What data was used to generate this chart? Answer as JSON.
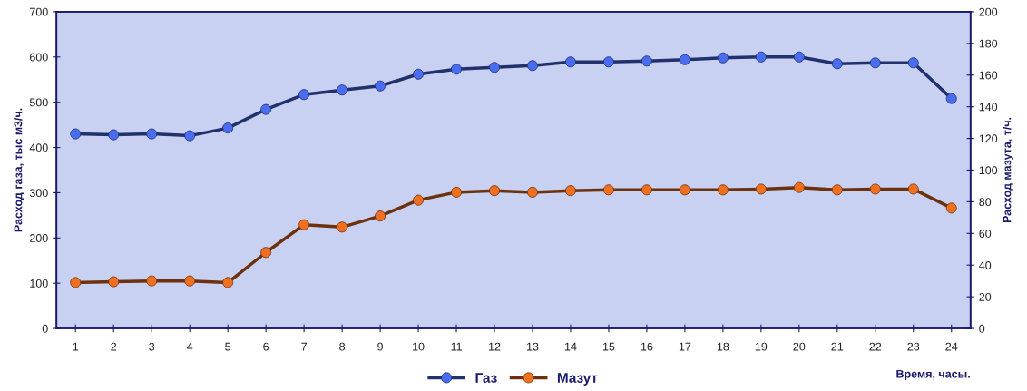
{
  "chart_data": {
    "type": "line",
    "xlabel": "Время, часы.",
    "ylabel": "Расход газа, тыс м3/ч.",
    "y2label": "Расход мазута, т/ч.",
    "categories": [
      "1",
      "2",
      "3",
      "4",
      "5",
      "6",
      "7",
      "8",
      "9",
      "10",
      "11",
      "12",
      "13",
      "14",
      "15",
      "16",
      "17",
      "18",
      "19",
      "20",
      "21",
      "22",
      "23",
      "24"
    ],
    "series": [
      {
        "name": "Газ",
        "color": "#4a6cf0",
        "values": [
          430,
          428,
          430,
          426,
          443,
          484,
          517,
          527,
          536,
          562,
          573,
          577,
          581,
          589,
          589,
          591,
          594,
          598,
          600,
          600,
          585,
          587,
          587,
          508
        ]
      },
      {
        "name": "Мазут",
        "color": "#f07020",
        "axis": "y2",
        "values": [
          29,
          29.5,
          30,
          30,
          29,
          48,
          65.5,
          64,
          71,
          81,
          86,
          87,
          86,
          87,
          87.5,
          87.5,
          87.5,
          87.5,
          88,
          89,
          87.5,
          88,
          88,
          76
        ]
      }
    ],
    "ylim": [
      0,
      700
    ],
    "yticks": [
      0,
      100,
      200,
      300,
      400,
      500,
      600,
      700
    ],
    "y2lim": [
      0,
      200
    ],
    "y2ticks": [
      0,
      20,
      40,
      60,
      80,
      100,
      120,
      140,
      160,
      180,
      200
    ],
    "marker": "circle",
    "line_style": "solid",
    "grid": false,
    "legend": "bottom"
  }
}
